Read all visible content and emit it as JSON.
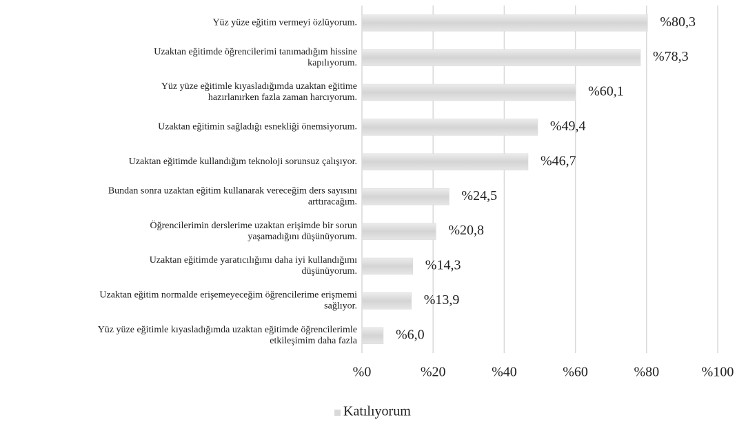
{
  "chart_data": {
    "type": "bar",
    "orientation": "horizontal",
    "categories": [
      [
        "Yüz yüze eğitim vermeyi özlüyorum."
      ],
      [
        "Uzaktan eğitimde öğrencilerimi tanımadığım hissine",
        "kapılıyorum."
      ],
      [
        "Yüz yüze eğitimle kıyasladığımda uzaktan eğitime",
        "hazırlanırken fazla zaman harcıyorum."
      ],
      [
        "Uzaktan eğitimin sağladığı esnekliği önemsiyorum."
      ],
      [
        "Uzaktan eğitimde kullandığım teknoloji sorunsuz çalışıyor."
      ],
      [
        "Bundan sonra uzaktan eğitim kullanarak vereceğim ders sayısını",
        "arttıracağım."
      ],
      [
        "Öğrencilerimin derslerime uzaktan erişimde bir sorun",
        "yaşamadığını düşünüyorum."
      ],
      [
        "Uzaktan eğitimde yaratıcılığımı daha iyi kullandığımı",
        "düşünüyorum."
      ],
      [
        "Uzaktan eğitim normalde erişemeyeceğim öğrencilerime erişmemi",
        "sağlıyor."
      ],
      [
        "Yüz yüze eğitimle kıyasladığımda uzaktan eğitimde öğrencilerimle",
        "etkileşimim daha fazla"
      ]
    ],
    "series": [
      {
        "name": "Katılıyorum",
        "color": "#d9d9d9",
        "values": [
          80.3,
          78.3,
          60.1,
          49.4,
          46.7,
          24.5,
          20.8,
          14.3,
          13.9,
          6.0
        ],
        "value_labels": [
          "%80,3",
          "%78,3",
          "%60,1",
          "%49,4",
          "%46,7",
          "%24,5",
          "%20,8",
          "%14,3",
          "%13,9",
          "%6,0"
        ]
      }
    ],
    "xlim": [
      0,
      100
    ],
    "xticks": [
      {
        "value": 0,
        "label": "%0"
      },
      {
        "value": 20,
        "label": "%20"
      },
      {
        "value": 40,
        "label": "%40"
      },
      {
        "value": 60,
        "label": "%60"
      },
      {
        "value": 80,
        "label": "%80"
      },
      {
        "value": 100,
        "label": "%100"
      }
    ],
    "grid": true,
    "legend": "bottom"
  }
}
